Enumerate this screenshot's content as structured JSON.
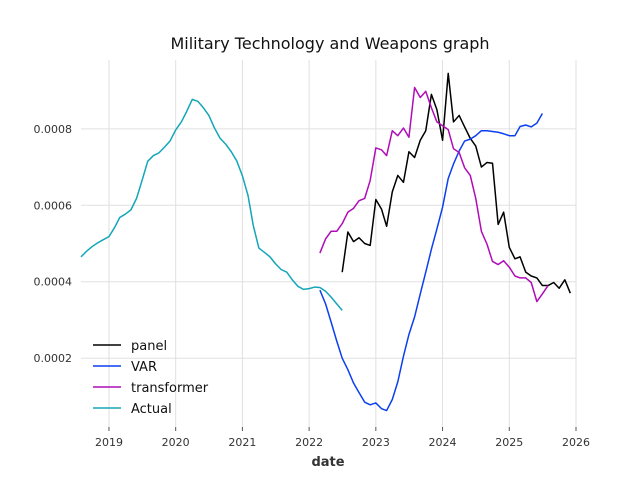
{
  "chart_data": {
    "type": "line",
    "title": "Military Technology and Weapons graph",
    "xlabel": "date",
    "ylabel": "",
    "x_axis_type": "date",
    "xlim": [
      "2018-08-01",
      "2026-01-01"
    ],
    "ylim": [
      2e-05,
      0.00098
    ],
    "x_ticks": [
      "2019",
      "2020",
      "2021",
      "2022",
      "2023",
      "2024",
      "2025",
      "2026"
    ],
    "y_ticks": [
      "0.0002",
      "0.0004",
      "0.0006",
      "0.0008"
    ],
    "y_tick_values": [
      0.0002,
      0.0004,
      0.0006,
      0.0008
    ],
    "grid": true,
    "legend_position": "lower-left",
    "series": [
      {
        "name": "panel",
        "color": "#000000",
        "points": [
          [
            "2022-07-01",
            0.000425
          ],
          [
            "2022-08-01",
            0.00053
          ],
          [
            "2022-09-01",
            0.000505
          ],
          [
            "2022-10-01",
            0.000515
          ],
          [
            "2022-11-01",
            0.0005
          ],
          [
            "2022-12-01",
            0.000495
          ],
          [
            "2023-01-01",
            0.000615
          ],
          [
            "2023-02-01",
            0.00059
          ],
          [
            "2023-03-01",
            0.000545
          ],
          [
            "2023-04-01",
            0.000635
          ],
          [
            "2023-05-01",
            0.000678
          ],
          [
            "2023-06-01",
            0.00066
          ],
          [
            "2023-07-01",
            0.00074
          ],
          [
            "2023-08-01",
            0.000725
          ],
          [
            "2023-09-01",
            0.00077
          ],
          [
            "2023-10-01",
            0.000795
          ],
          [
            "2023-11-01",
            0.00089
          ],
          [
            "2023-12-01",
            0.00085
          ],
          [
            "2024-01-01",
            0.00077
          ],
          [
            "2024-02-01",
            0.000945
          ],
          [
            "2024-03-01",
            0.000818
          ],
          [
            "2024-04-01",
            0.000835
          ],
          [
            "2024-05-01",
            0.000805
          ],
          [
            "2024-06-01",
            0.000775
          ],
          [
            "2024-07-01",
            0.000755
          ],
          [
            "2024-08-01",
            0.0007
          ],
          [
            "2024-09-01",
            0.000712
          ],
          [
            "2024-10-01",
            0.00071
          ],
          [
            "2024-11-01",
            0.00055
          ],
          [
            "2024-12-01",
            0.000582
          ],
          [
            "2025-01-01",
            0.00049
          ],
          [
            "2025-02-01",
            0.00046
          ],
          [
            "2025-03-01",
            0.000465
          ],
          [
            "2025-04-01",
            0.000425
          ],
          [
            "2025-05-01",
            0.000415
          ],
          [
            "2025-06-01",
            0.00041
          ],
          [
            "2025-07-01",
            0.00039
          ],
          [
            "2025-08-01",
            0.00039
          ],
          [
            "2025-09-01",
            0.000398
          ],
          [
            "2025-10-01",
            0.000383
          ],
          [
            "2025-11-01",
            0.000405
          ],
          [
            "2025-12-01",
            0.00037
          ]
        ]
      },
      {
        "name": "VAR",
        "color": "#0c3ff0",
        "points": [
          [
            "2022-03-01",
            0.000378
          ],
          [
            "2022-04-01",
            0.000342
          ],
          [
            "2022-05-01",
            0.000295
          ],
          [
            "2022-06-01",
            0.000245
          ],
          [
            "2022-07-01",
            0.0002
          ],
          [
            "2022-08-01",
            0.00017
          ],
          [
            "2022-09-01",
            0.000135
          ],
          [
            "2022-10-01",
            0.00011
          ],
          [
            "2022-11-01",
            8.5e-05
          ],
          [
            "2022-12-01",
            7.8e-05
          ],
          [
            "2023-01-01",
            8.3e-05
          ],
          [
            "2023-02-01",
            6.8e-05
          ],
          [
            "2023-03-01",
            6.3e-05
          ],
          [
            "2023-04-01",
            9.2e-05
          ],
          [
            "2023-05-01",
            0.000138
          ],
          [
            "2023-06-01",
            0.000205
          ],
          [
            "2023-07-01",
            0.000262
          ],
          [
            "2023-08-01",
            0.000308
          ],
          [
            "2023-09-01",
            0.000368
          ],
          [
            "2023-10-01",
            0.000425
          ],
          [
            "2023-11-01",
            0.000485
          ],
          [
            "2023-12-01",
            0.000538
          ],
          [
            "2024-01-01",
            0.000595
          ],
          [
            "2024-02-01",
            0.00067
          ],
          [
            "2024-03-01",
            0.000708
          ],
          [
            "2024-04-01",
            0.000742
          ],
          [
            "2024-05-01",
            0.000768
          ],
          [
            "2024-06-01",
            0.000773
          ],
          [
            "2024-07-01",
            0.000782
          ],
          [
            "2024-08-01",
            0.000795
          ],
          [
            "2024-09-01",
            0.000795
          ],
          [
            "2024-10-01",
            0.000793
          ],
          [
            "2024-11-01",
            0.000791
          ],
          [
            "2024-12-01",
            0.000787
          ],
          [
            "2025-01-01",
            0.000782
          ],
          [
            "2025-02-01",
            0.000782
          ],
          [
            "2025-03-01",
            0.000806
          ],
          [
            "2025-04-01",
            0.00081
          ],
          [
            "2025-05-01",
            0.000805
          ],
          [
            "2025-06-01",
            0.000815
          ],
          [
            "2025-07-01",
            0.00084
          ]
        ]
      },
      {
        "name": "transformer",
        "color": "#b00cb8",
        "points": [
          [
            "2022-03-01",
            0.000475
          ],
          [
            "2022-04-01",
            0.000512
          ],
          [
            "2022-05-01",
            0.000532
          ],
          [
            "2022-06-01",
            0.000532
          ],
          [
            "2022-07-01",
            0.000552
          ],
          [
            "2022-08-01",
            0.000582
          ],
          [
            "2022-09-01",
            0.000592
          ],
          [
            "2022-10-01",
            0.000612
          ],
          [
            "2022-11-01",
            0.000618
          ],
          [
            "2022-12-01",
            0.000665
          ],
          [
            "2023-01-01",
            0.00075
          ],
          [
            "2023-02-01",
            0.000745
          ],
          [
            "2023-03-01",
            0.00073
          ],
          [
            "2023-04-01",
            0.000795
          ],
          [
            "2023-05-01",
            0.000782
          ],
          [
            "2023-06-01",
            0.000802
          ],
          [
            "2023-07-01",
            0.000778
          ],
          [
            "2023-08-01",
            0.000908
          ],
          [
            "2023-09-01",
            0.000882
          ],
          [
            "2023-10-01",
            0.000898
          ],
          [
            "2023-11-01",
            0.000855
          ],
          [
            "2023-12-01",
            0.000818
          ],
          [
            "2024-01-01",
            0.000808
          ],
          [
            "2024-02-01",
            0.000798
          ],
          [
            "2024-03-01",
            0.000748
          ],
          [
            "2024-04-01",
            0.000738
          ],
          [
            "2024-05-01",
            0.000698
          ],
          [
            "2024-06-01",
            0.000678
          ],
          [
            "2024-07-01",
            0.000618
          ],
          [
            "2024-08-01",
            0.000532
          ],
          [
            "2024-09-01",
            0.000498
          ],
          [
            "2024-10-01",
            0.000453
          ],
          [
            "2024-11-01",
            0.000445
          ],
          [
            "2024-12-01",
            0.000455
          ],
          [
            "2025-01-01",
            0.000438
          ],
          [
            "2025-02-01",
            0.000415
          ],
          [
            "2025-03-01",
            0.00041
          ],
          [
            "2025-04-01",
            0.00041
          ],
          [
            "2025-05-01",
            0.000398
          ],
          [
            "2025-06-01",
            0.000348
          ],
          [
            "2025-07-01",
            0.000368
          ],
          [
            "2025-08-01",
            0.00039
          ]
        ]
      },
      {
        "name": "Actual",
        "color": "#13a6b8",
        "points": [
          [
            "2018-08-01",
            0.000465
          ],
          [
            "2018-09-01",
            0.00048
          ],
          [
            "2018-10-01",
            0.000492
          ],
          [
            "2018-11-01",
            0.000502
          ],
          [
            "2018-12-01",
            0.00051
          ],
          [
            "2019-01-01",
            0.000518
          ],
          [
            "2019-02-01",
            0.000542
          ],
          [
            "2019-03-01",
            0.000568
          ],
          [
            "2019-04-01",
            0.000577
          ],
          [
            "2019-05-01",
            0.000588
          ],
          [
            "2019-06-01",
            0.000618
          ],
          [
            "2019-07-01",
            0.000665
          ],
          [
            "2019-08-01",
            0.000715
          ],
          [
            "2019-09-01",
            0.00073
          ],
          [
            "2019-10-01",
            0.000737
          ],
          [
            "2019-11-01",
            0.000752
          ],
          [
            "2019-12-01",
            0.000768
          ],
          [
            "2020-01-01",
            0.000797
          ],
          [
            "2020-02-01",
            0.000818
          ],
          [
            "2020-03-01",
            0.000845
          ],
          [
            "2020-04-01",
            0.000877
          ],
          [
            "2020-05-01",
            0.000872
          ],
          [
            "2020-06-01",
            0.000855
          ],
          [
            "2020-07-01",
            0.000835
          ],
          [
            "2020-08-01",
            0.000802
          ],
          [
            "2020-09-01",
            0.000775
          ],
          [
            "2020-10-01",
            0.00076
          ],
          [
            "2020-11-01",
            0.00074
          ],
          [
            "2020-12-01",
            0.000716
          ],
          [
            "2021-01-01",
            0.000677
          ],
          [
            "2021-02-01",
            0.000625
          ],
          [
            "2021-03-01",
            0.000548
          ],
          [
            "2021-04-01",
            0.000488
          ],
          [
            "2021-05-01",
            0.000477
          ],
          [
            "2021-06-01",
            0.000465
          ],
          [
            "2021-07-01",
            0.000447
          ],
          [
            "2021-08-01",
            0.000432
          ],
          [
            "2021-09-01",
            0.000425
          ],
          [
            "2021-10-01",
            0.000405
          ],
          [
            "2021-11-01",
            0.000388
          ],
          [
            "2021-12-01",
            0.00038
          ],
          [
            "2022-01-01",
            0.000382
          ],
          [
            "2022-02-01",
            0.000386
          ],
          [
            "2022-03-01",
            0.000385
          ],
          [
            "2022-04-01",
            0.000375
          ],
          [
            "2022-05-01",
            0.00036
          ],
          [
            "2022-06-01",
            0.000342
          ],
          [
            "2022-07-01",
            0.000325
          ]
        ]
      }
    ]
  }
}
